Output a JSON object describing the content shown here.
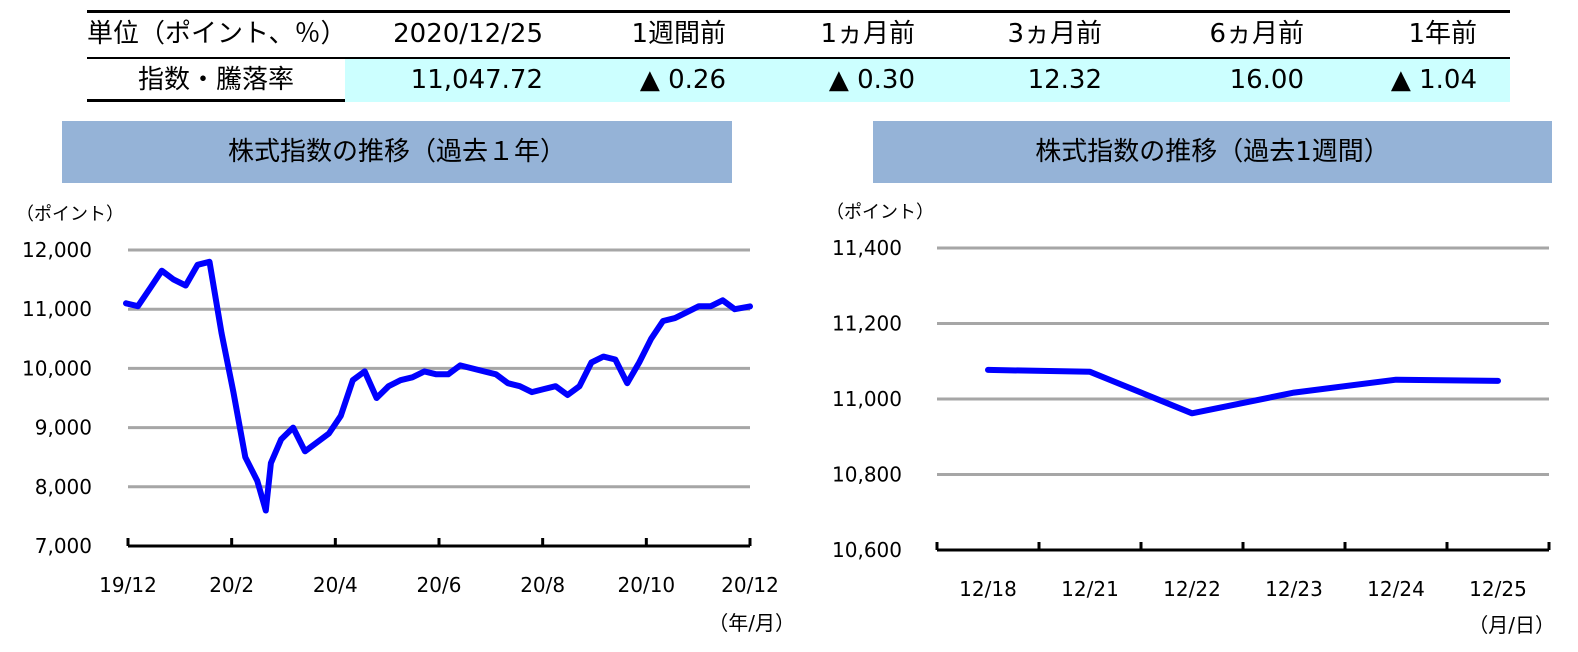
{
  "summary_table": {
    "unit_label": "単位（ポイント、％）",
    "headers": [
      "2020/12/25",
      "1週間前",
      "1ヵ月前",
      "3ヵ月前",
      "6ヵ月前",
      "1年前"
    ],
    "row_label": "指数・騰落率",
    "values": [
      "11,047.72",
      "▲ 0.26",
      "▲ 0.30",
      "12.32",
      "16.00",
      "▲ 1.04"
    ],
    "value_background": "#ccffff"
  },
  "chart_data": [
    {
      "type": "line",
      "title": "株式指数の推移（過去１年）",
      "y_unit": "（ポイント）",
      "x_unit": "（年/月）",
      "ylim": [
        7000,
        12000
      ],
      "y_ticks": [
        "12,000",
        "11,000",
        "10,000",
        "9,000",
        "8,000",
        "7,000"
      ],
      "x_ticks": [
        "19/12",
        "20/2",
        "20/4",
        "20/6",
        "20/8",
        "20/10",
        "20/12"
      ],
      "grid": true,
      "line_color": "#0000ff",
      "panel_color": "#95b3d7",
      "x": [
        "2019-12-25",
        "2020-01-01",
        "2020-01-08",
        "2020-01-15",
        "2020-01-22",
        "2020-01-29",
        "2020-02-05",
        "2020-02-12",
        "2020-02-19",
        "2020-02-26",
        "2020-03-04",
        "2020-03-11",
        "2020-03-16",
        "2020-03-19",
        "2020-03-25",
        "2020-04-01",
        "2020-04-08",
        "2020-04-15",
        "2020-04-22",
        "2020-04-29",
        "2020-05-06",
        "2020-05-13",
        "2020-05-20",
        "2020-05-27",
        "2020-06-03",
        "2020-06-10",
        "2020-06-17",
        "2020-06-24",
        "2020-07-01",
        "2020-07-08",
        "2020-07-15",
        "2020-07-22",
        "2020-07-29",
        "2020-08-05",
        "2020-08-12",
        "2020-08-19",
        "2020-08-26",
        "2020-09-02",
        "2020-09-09",
        "2020-09-16",
        "2020-09-23",
        "2020-09-30",
        "2020-10-07",
        "2020-10-14",
        "2020-10-21",
        "2020-10-28",
        "2020-11-04",
        "2020-11-11",
        "2020-11-18",
        "2020-11-25",
        "2020-12-02",
        "2020-12-09",
        "2020-12-16",
        "2020-12-25"
      ],
      "values": [
        11100,
        11050,
        11350,
        11650,
        11500,
        11400,
        11750,
        11800,
        10600,
        9600,
        8500,
        8100,
        7600,
        8400,
        8800,
        9000,
        8600,
        8750,
        8900,
        9200,
        9800,
        9950,
        9500,
        9700,
        9800,
        9850,
        9950,
        9900,
        9900,
        10050,
        10000,
        9950,
        9900,
        9750,
        9700,
        9600,
        9650,
        9700,
        9550,
        9700,
        10100,
        10200,
        10150,
        9750,
        10100,
        10500,
        10800,
        10850,
        10950,
        11050,
        11050,
        11150,
        11000,
        11048
      ]
    },
    {
      "type": "line",
      "title": "株式指数の推移（過去1週間）",
      "y_unit": "（ポイント）",
      "x_unit": "（月/日）",
      "ylim": [
        10600,
        11400
      ],
      "y_ticks": [
        "11,400",
        "11,200",
        "11,000",
        "10,800",
        "10,600"
      ],
      "categories": [
        "12/18",
        "12/21",
        "12/22",
        "12/23",
        "12/24",
        "12/25"
      ],
      "values": [
        11077,
        11072,
        10962,
        11017,
        11051,
        11048
      ],
      "grid": true,
      "line_color": "#0000ff",
      "panel_color": "#95b3d7"
    }
  ]
}
